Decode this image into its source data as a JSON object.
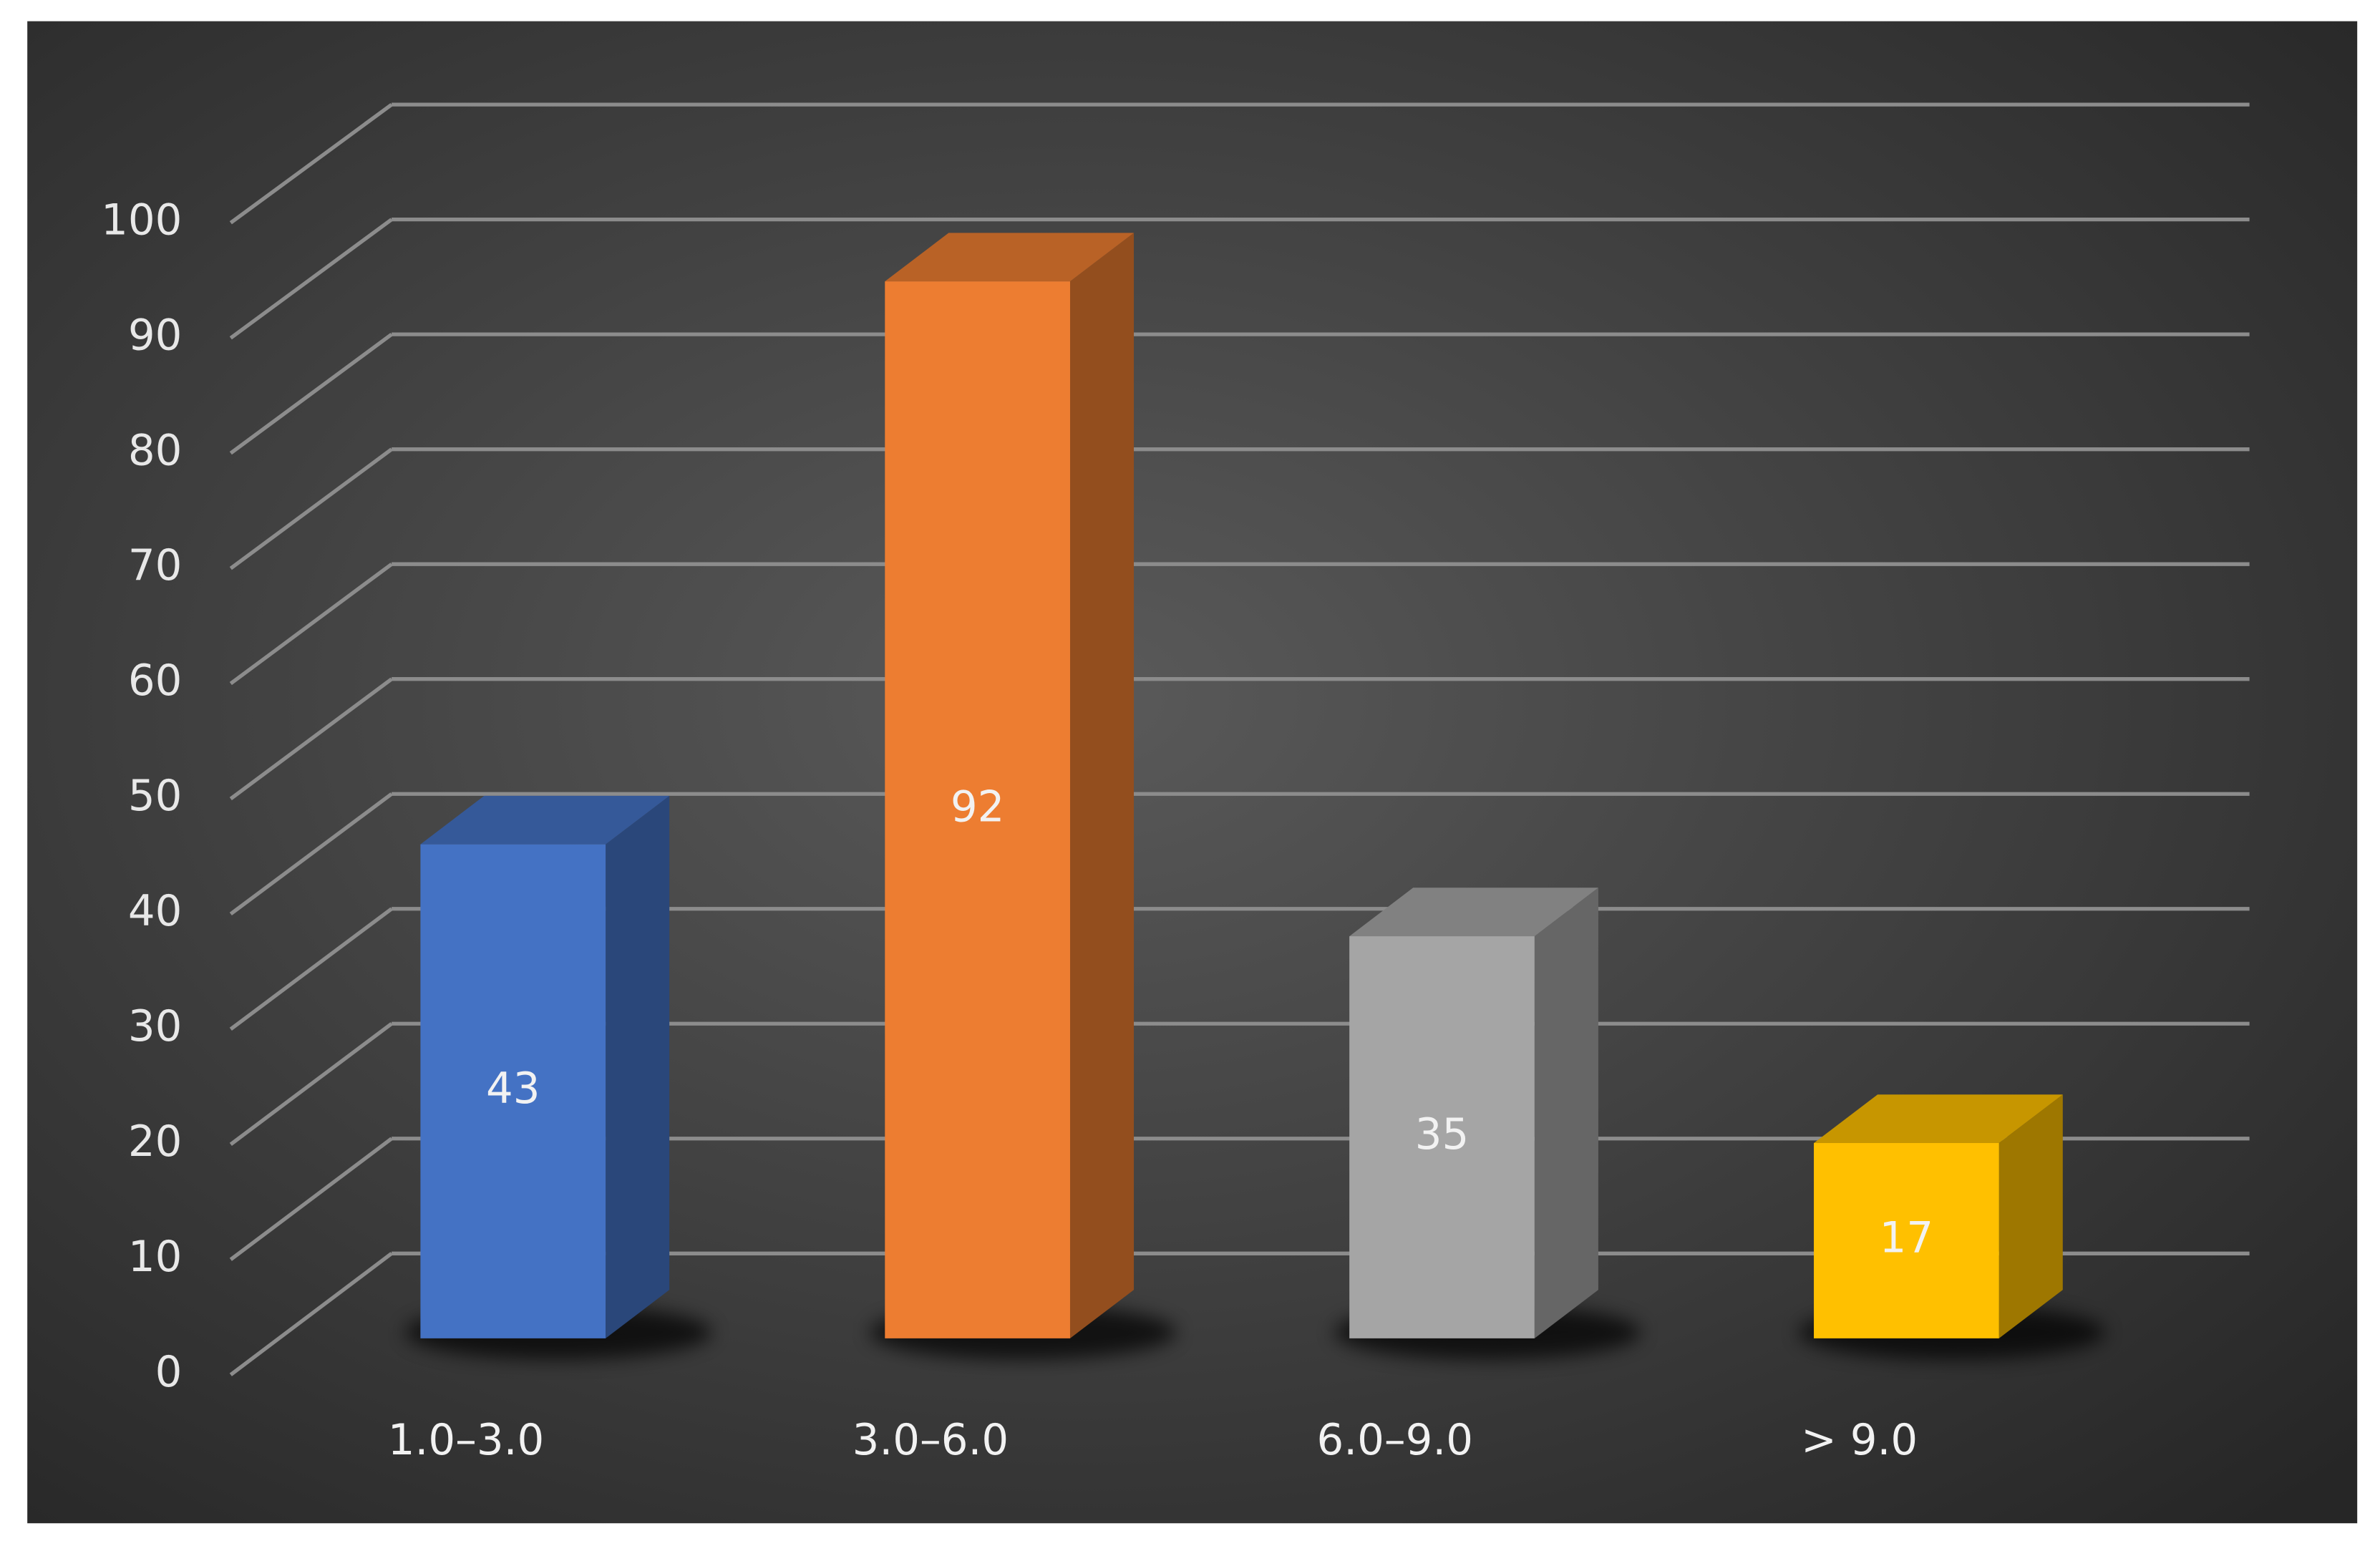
{
  "chart_data": {
    "type": "bar3d",
    "categories": [
      "1.0–3.0",
      "3.0–6.0",
      "6.0–9.0",
      "> 9.0"
    ],
    "values": [
      43,
      92,
      35,
      17
    ],
    "colors": [
      "#4472c4",
      "#ed7d31",
      "#a5a5a5",
      "#ffc000"
    ],
    "ylim": [
      0,
      100
    ],
    "yticks": [
      0,
      10,
      20,
      30,
      40,
      50,
      60,
      70,
      80,
      90,
      100
    ],
    "grid": true
  }
}
